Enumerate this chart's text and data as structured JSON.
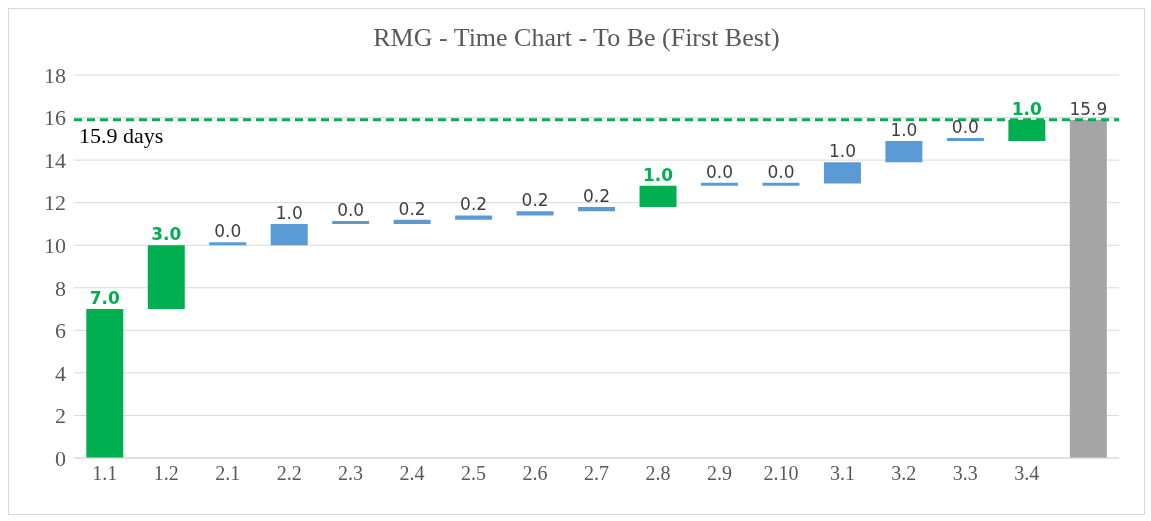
{
  "chart_data": {
    "type": "bar",
    "title": "RMG - Time Chart - To Be (First Best)",
    "categories": [
      "1.1",
      "1.2",
      "2.1",
      "2.2",
      "2.3",
      "2.4",
      "2.5",
      "2.6",
      "2.7",
      "2.8",
      "2.9",
      "2.10",
      "3.1",
      "3.2",
      "3.3",
      "3.4",
      null
    ],
    "values": [
      7,
      3,
      0,
      1,
      0,
      0.2,
      0.2,
      0.2,
      0.2,
      1,
      0,
      0,
      1,
      1,
      0,
      1,
      15.9
    ],
    "base": [
      0,
      7,
      10,
      10,
      11,
      11,
      11.2,
      11.4,
      11.6,
      11.8,
      12.8,
      12.8,
      12.9,
      13.9,
      14.9,
      14.9,
      0
    ],
    "colors": [
      "#00b050",
      "#00b050",
      "#5b9bd5",
      "#5b9bd5",
      "#5b9bd5",
      "#5b9bd5",
      "#5b9bd5",
      "#5b9bd5",
      "#5b9bd5",
      "#00b050",
      "#5b9bd5",
      "#5b9bd5",
      "#5b9bd5",
      "#5b9bd5",
      "#5b9bd5",
      "#00b050",
      "#a5a5a5"
    ],
    "value_labels": [
      "7.0",
      "3.0",
      "0.0",
      "1.0",
      "0.0",
      "0.2",
      "0.2",
      "0.2",
      "0.2",
      "1.0",
      "0.0",
      "0.0",
      "1.0",
      "1.0",
      "0.0",
      "1.0",
      "15.9"
    ],
    "ylim": [
      0,
      18
    ],
    "yticks": [
      0,
      2,
      4,
      6,
      8,
      10,
      12,
      14,
      16,
      18
    ],
    "grid": "y",
    "ref_lines": [
      {
        "axis": "y",
        "value": 15.9,
        "label": "15.9 days",
        "color": "#00b050",
        "line_style": "dashed"
      }
    ]
  }
}
